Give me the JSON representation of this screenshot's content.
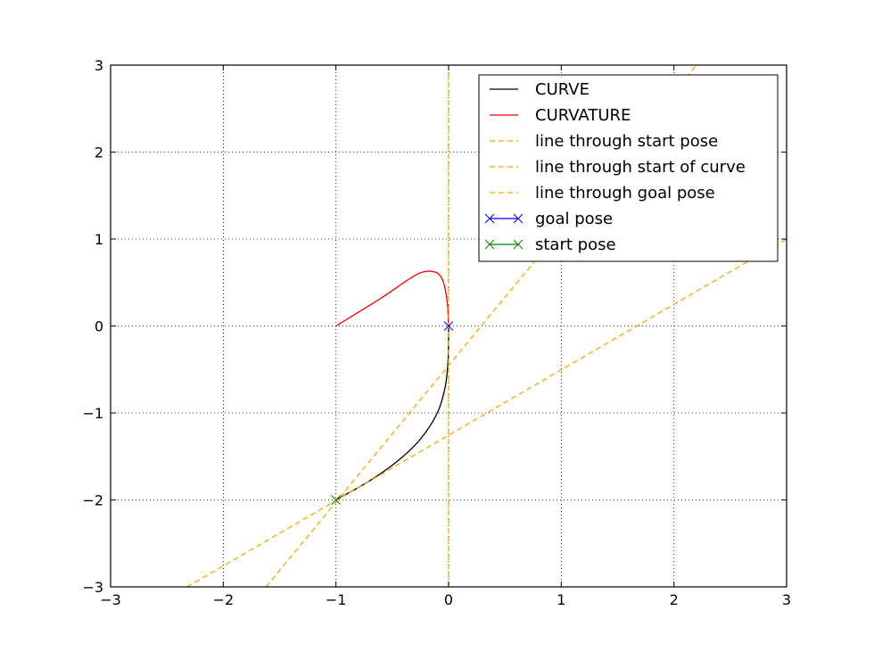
{
  "chart_data": {
    "type": "line",
    "title": "",
    "xlabel": "",
    "ylabel": "",
    "xlim": [
      -3,
      3
    ],
    "ylim": [
      -3,
      3
    ],
    "xticks": [
      -3,
      -2,
      -1,
      0,
      1,
      2,
      3
    ],
    "yticks": [
      -3,
      -2,
      -1,
      0,
      1,
      2,
      3
    ],
    "xtick_labels": [
      "−3",
      "−2",
      "−1",
      "0",
      "1",
      "2",
      "3"
    ],
    "ytick_labels": [
      "−3",
      "−2",
      "−1",
      "0",
      "1",
      "2",
      "3"
    ],
    "grid": true,
    "legend_position": "top-right",
    "series": [
      {
        "name": "CURVE",
        "color": "#000000",
        "style": "solid",
        "points": [
          [
            -1.0,
            -2.0
          ],
          [
            -0.7,
            -1.78
          ],
          [
            -0.45,
            -1.55
          ],
          [
            -0.25,
            -1.3
          ],
          [
            -0.1,
            -1.0
          ],
          [
            -0.03,
            -0.7
          ],
          [
            -0.005,
            -0.4
          ],
          [
            0.0,
            -0.15
          ],
          [
            0.0,
            0.0
          ]
        ]
      },
      {
        "name": "CURVATURE",
        "color": "#ff0000",
        "style": "solid",
        "points": [
          [
            -1.0,
            0.0
          ],
          [
            -0.6,
            0.32
          ],
          [
            -0.35,
            0.54
          ],
          [
            -0.23,
            0.62
          ],
          [
            -0.12,
            0.62
          ],
          [
            -0.06,
            0.55
          ],
          [
            -0.03,
            0.42
          ],
          [
            -0.01,
            0.25
          ],
          [
            0.0,
            0.0
          ]
        ]
      },
      {
        "name": "line through start pose",
        "color": "#ffa500",
        "style": "dashed",
        "points": [
          [
            -2.32,
            -3.0
          ],
          [
            3.0,
            1.0
          ]
        ]
      },
      {
        "name": "line through start of curve",
        "color": "#ffa500",
        "style": "dashed",
        "points": [
          [
            -1.62,
            -3.0
          ],
          [
            2.2,
            3.0
          ]
        ]
      },
      {
        "name": "line through goal pose",
        "color": "#ffa500",
        "style": "dashed",
        "points": [
          [
            0.0,
            -3.0
          ],
          [
            0.0,
            3.0
          ]
        ]
      },
      {
        "name": "goal pose",
        "color": "#0000ff",
        "style": "marker-x",
        "points": [
          [
            0.0,
            0.0
          ]
        ]
      },
      {
        "name": "start pose",
        "color": "#008000",
        "style": "marker-x",
        "points": [
          [
            -1.0,
            -2.0
          ]
        ]
      }
    ]
  }
}
